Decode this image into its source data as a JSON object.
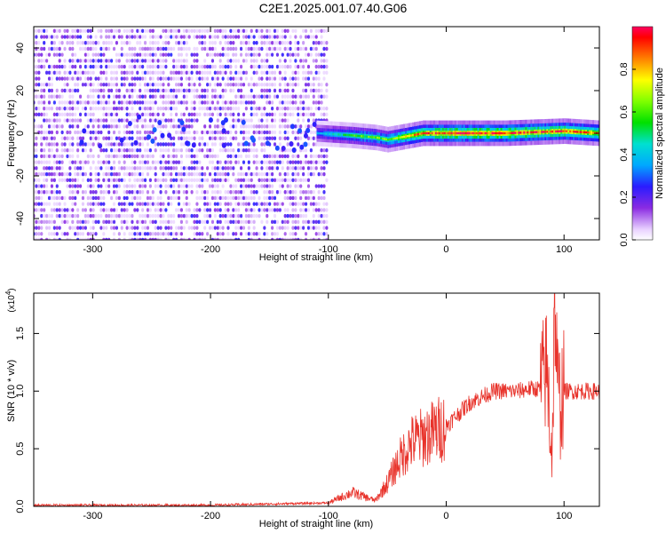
{
  "title": "C2E1.2025.001.07.40.G06",
  "chart_data": [
    {
      "type": "heatmap",
      "title": "C2E1.2025.001.07.40.G06",
      "xlabel": "Height of straight line (km)",
      "ylabel": "Frequency (Hz)",
      "xlim": [
        -350,
        130
      ],
      "ylim": [
        -50,
        50
      ],
      "xticks": [
        "-300",
        "-200",
        "-100",
        "0",
        "100"
      ],
      "yticks": [
        "-40",
        "-20",
        "0",
        "20",
        "40"
      ],
      "colorbar": {
        "label": "Normalized spectral amplitude",
        "range": [
          0,
          1
        ],
        "ticks": [
          "0.0",
          "0.2",
          "0.4",
          "0.6",
          "0.8"
        ]
      },
      "noise_region_x": [
        -350,
        -100
      ],
      "signal_band": {
        "x": [
          -110,
          -80,
          -60,
          -50,
          -40,
          -20,
          0,
          50,
          100,
          130
        ],
        "center_freq": [
          0,
          -1,
          -2,
          -3,
          -2,
          0,
          0,
          0,
          1,
          0
        ],
        "peak_amplitude": [
          0.35,
          0.55,
          0.6,
          0.6,
          0.7,
          0.85,
          0.95,
          0.95,
          0.9,
          0.8
        ]
      },
      "grid": false
    },
    {
      "type": "line",
      "xlabel": "Height of straight line (km)",
      "ylabel": "SNR (10 * v/v)",
      "y_multiplier": "(x10",
      "y_multiplier_exp": "4",
      "y_multiplier_close": ")",
      "xlim": [
        -350,
        130
      ],
      "ylim": [
        0,
        1.85
      ],
      "xticks": [
        "-300",
        "-200",
        "-100",
        "0",
        "100"
      ],
      "yticks": [
        "0.0",
        "0.5",
        "1.0",
        "1.5"
      ],
      "series": [
        {
          "color": "#e8322a",
          "x": [
            -350,
            -300,
            -250,
            -200,
            -150,
            -100,
            -80,
            -60,
            -50,
            -40,
            -30,
            -20,
            -10,
            0,
            10,
            20,
            30,
            40,
            50,
            60,
            70,
            80,
            85,
            90,
            92,
            95,
            100,
            110,
            120,
            130
          ],
          "y": [
            0.01,
            0.01,
            0.01,
            0.01,
            0.02,
            0.03,
            0.12,
            0.05,
            0.2,
            0.4,
            0.55,
            0.6,
            0.65,
            0.7,
            0.8,
            0.9,
            0.95,
            1.0,
            1.0,
            1.0,
            1.02,
            1.02,
            1.2,
            0.5,
            1.8,
            0.9,
            1.0,
            1.0,
            1.0,
            1.0
          ]
        }
      ],
      "grid": false
    }
  ]
}
